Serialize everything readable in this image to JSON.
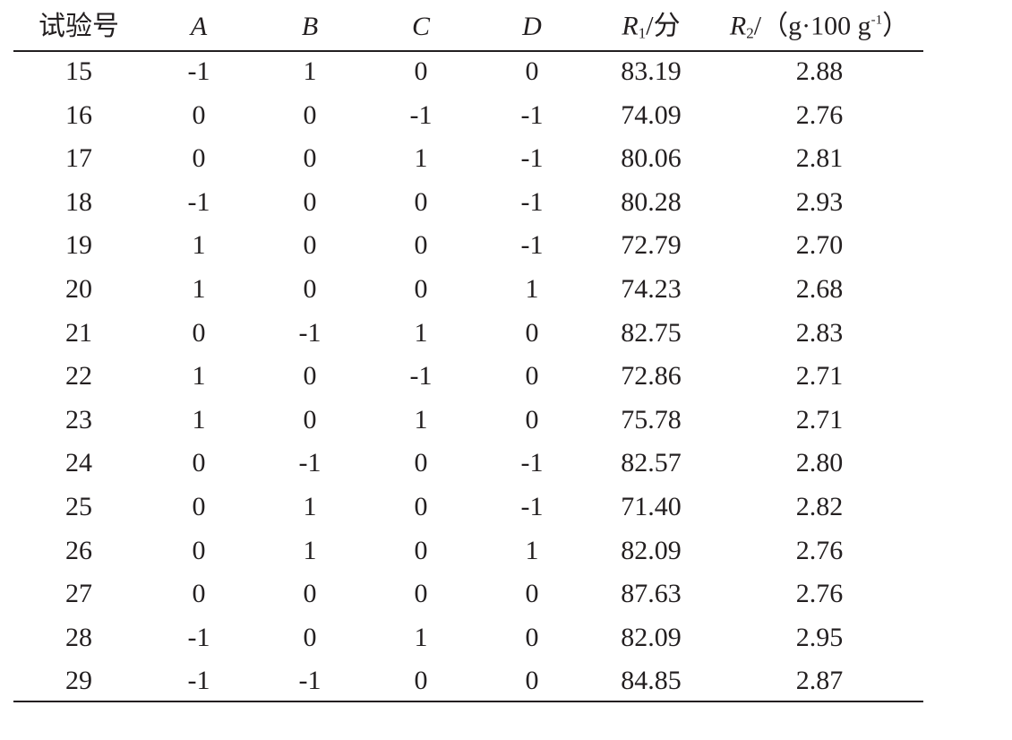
{
  "table": {
    "header": [
      [
        {
          "text": "试验号"
        }
      ],
      [
        {
          "text": "A",
          "style": "italic"
        }
      ],
      [
        {
          "text": "B",
          "style": "italic"
        }
      ],
      [
        {
          "text": "C",
          "style": "italic"
        }
      ],
      [
        {
          "text": "D",
          "style": "italic"
        }
      ],
      [
        {
          "text": "R",
          "style": "italic"
        },
        {
          "text": "1",
          "style": "sub"
        },
        {
          "text": "/分"
        }
      ],
      [
        {
          "text": "R",
          "style": "italic"
        },
        {
          "text": "2",
          "style": "sub"
        },
        {
          "text": "/（g·100 g"
        },
        {
          "text": "-1",
          "style": "sup"
        },
        {
          "text": "）"
        }
      ]
    ],
    "rows": [
      [
        "15",
        "-1",
        "1",
        "0",
        "0",
        "83.19",
        "2.88"
      ],
      [
        "16",
        "0",
        "0",
        "-1",
        "-1",
        "74.09",
        "2.76"
      ],
      [
        "17",
        "0",
        "0",
        "1",
        "-1",
        "80.06",
        "2.81"
      ],
      [
        "18",
        "-1",
        "0",
        "0",
        "-1",
        "80.28",
        "2.93"
      ],
      [
        "19",
        "1",
        "0",
        "0",
        "-1",
        "72.79",
        "2.70"
      ],
      [
        "20",
        "1",
        "0",
        "0",
        "1",
        "74.23",
        "2.68"
      ],
      [
        "21",
        "0",
        "-1",
        "1",
        "0",
        "82.75",
        "2.83"
      ],
      [
        "22",
        "1",
        "0",
        "-1",
        "0",
        "72.86",
        "2.71"
      ],
      [
        "23",
        "1",
        "0",
        "1",
        "0",
        "75.78",
        "2.71"
      ],
      [
        "24",
        "0",
        "-1",
        "0",
        "-1",
        "82.57",
        "2.80"
      ],
      [
        "25",
        "0",
        "1",
        "0",
        "-1",
        "71.40",
        "2.82"
      ],
      [
        "26",
        "0",
        "1",
        "0",
        "1",
        "82.09",
        "2.76"
      ],
      [
        "27",
        "0",
        "0",
        "0",
        "0",
        "87.63",
        "2.76"
      ],
      [
        "28",
        "-1",
        "0",
        "1",
        "0",
        "82.09",
        "2.95"
      ],
      [
        "29",
        "-1",
        "-1",
        "0",
        "0",
        "84.85",
        "2.87"
      ]
    ]
  }
}
